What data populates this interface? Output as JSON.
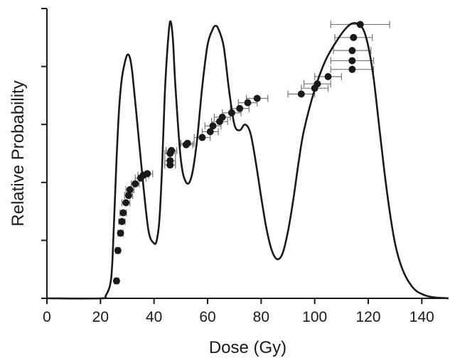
{
  "chart_data": {
    "type": "line",
    "title": "",
    "xlabel": "Dose (Gy)",
    "ylabel": "Relative Probability",
    "xlim": [
      0,
      150
    ],
    "ylim": [
      0,
      1
    ],
    "x_ticks": [
      "0",
      "20",
      "40",
      "60",
      "80",
      "100",
      "120",
      "140"
    ],
    "y_ticks": [
      0,
      0.2,
      0.4,
      0.6,
      0.8,
      1.0
    ],
    "y_tick_labels_shown": false,
    "grid": false,
    "colors": {
      "curve": "#1a1a1a",
      "points": "#1a1a1a",
      "error_bars": "#777777",
      "axes": "#1a1a1a"
    },
    "series": [
      {
        "type": "line",
        "x": [
          0,
          20,
          22,
          24,
          25,
          26,
          27,
          28,
          29,
          30,
          31,
          32,
          34,
          36,
          38,
          40,
          41,
          42,
          43,
          44,
          45,
          46,
          47,
          48,
          50,
          52,
          54,
          56,
          58,
          60,
          62,
          63,
          64,
          66,
          68,
          70,
          72,
          74,
          76,
          78,
          80,
          82,
          84,
          86,
          88,
          90,
          92,
          94,
          96,
          100,
          104,
          108,
          112,
          115,
          118,
          120,
          122,
          124,
          126,
          128,
          130,
          132,
          134,
          136,
          138,
          140,
          142,
          145,
          148,
          150
        ],
        "y": [
          0,
          0,
          0.01,
          0.07,
          0.25,
          0.48,
          0.66,
          0.76,
          0.81,
          0.84,
          0.83,
          0.77,
          0.58,
          0.39,
          0.23,
          0.19,
          0.2,
          0.27,
          0.45,
          0.7,
          0.86,
          0.955,
          0.9,
          0.73,
          0.48,
          0.4,
          0.42,
          0.54,
          0.73,
          0.875,
          0.93,
          0.94,
          0.93,
          0.87,
          0.72,
          0.6,
          0.58,
          0.6,
          0.57,
          0.47,
          0.35,
          0.24,
          0.165,
          0.135,
          0.155,
          0.23,
          0.34,
          0.47,
          0.58,
          0.72,
          0.82,
          0.885,
          0.935,
          0.95,
          0.93,
          0.87,
          0.76,
          0.6,
          0.44,
          0.3,
          0.19,
          0.12,
          0.075,
          0.045,
          0.025,
          0.015,
          0.008,
          0.003,
          0.001,
          0
        ]
      },
      {
        "type": "scatter",
        "points": [
          {
            "x": 26,
            "y": 0.06,
            "xerr": 0.8
          },
          {
            "x": 26.5,
            "y": 0.165,
            "xerr": 0.8
          },
          {
            "x": 27.5,
            "y": 0.225,
            "xerr": 1.0
          },
          {
            "x": 28,
            "y": 0.265,
            "xerr": 1.2
          },
          {
            "x": 28.5,
            "y": 0.295,
            "xerr": 1.2
          },
          {
            "x": 29.5,
            "y": 0.33,
            "xerr": 1.5
          },
          {
            "x": 30.5,
            "y": 0.355,
            "xerr": 1.5
          },
          {
            "x": 31,
            "y": 0.375,
            "xerr": 1.5
          },
          {
            "x": 33,
            "y": 0.395,
            "xerr": 1.5
          },
          {
            "x": 35,
            "y": 0.415,
            "xerr": 2.0
          },
          {
            "x": 36,
            "y": 0.425,
            "xerr": 2.0
          },
          {
            "x": 37.5,
            "y": 0.43,
            "xerr": 2.0
          },
          {
            "x": 46,
            "y": 0.46,
            "xerr": 2.0
          },
          {
            "x": 46,
            "y": 0.475,
            "xerr": 2.0
          },
          {
            "x": 46,
            "y": 0.5,
            "xerr": 2.0
          },
          {
            "x": 46.5,
            "y": 0.51,
            "xerr": 2.0
          },
          {
            "x": 52,
            "y": 0.53,
            "xerr": 2.5
          },
          {
            "x": 52.5,
            "y": 0.535,
            "xerr": 2.5
          },
          {
            "x": 58,
            "y": 0.555,
            "xerr": 3.0
          },
          {
            "x": 61,
            "y": 0.575,
            "xerr": 3.0
          },
          {
            "x": 62,
            "y": 0.595,
            "xerr": 3.0
          },
          {
            "x": 64.5,
            "y": 0.61,
            "xerr": 3.0
          },
          {
            "x": 65.5,
            "y": 0.625,
            "xerr": 3.0
          },
          {
            "x": 69,
            "y": 0.64,
            "xerr": 3.5
          },
          {
            "x": 72,
            "y": 0.655,
            "xerr": 3.5
          },
          {
            "x": 75,
            "y": 0.675,
            "xerr": 3.5
          },
          {
            "x": 78.5,
            "y": 0.69,
            "xerr": 4.0
          },
          {
            "x": 95,
            "y": 0.705,
            "xerr": 5.0
          },
          {
            "x": 100,
            "y": 0.725,
            "xerr": 5.0
          },
          {
            "x": 101,
            "y": 0.74,
            "xerr": 5.0
          },
          {
            "x": 105,
            "y": 0.765,
            "xerr": 5.0
          },
          {
            "x": 114,
            "y": 0.79,
            "xerr": 8.0
          },
          {
            "x": 114,
            "y": 0.82,
            "xerr": 8.0
          },
          {
            "x": 114,
            "y": 0.855,
            "xerr": 7.0
          },
          {
            "x": 114.5,
            "y": 0.9,
            "xerr": 7.0
          },
          {
            "x": 117,
            "y": 0.945,
            "xerr": 11.0
          }
        ]
      }
    ]
  }
}
